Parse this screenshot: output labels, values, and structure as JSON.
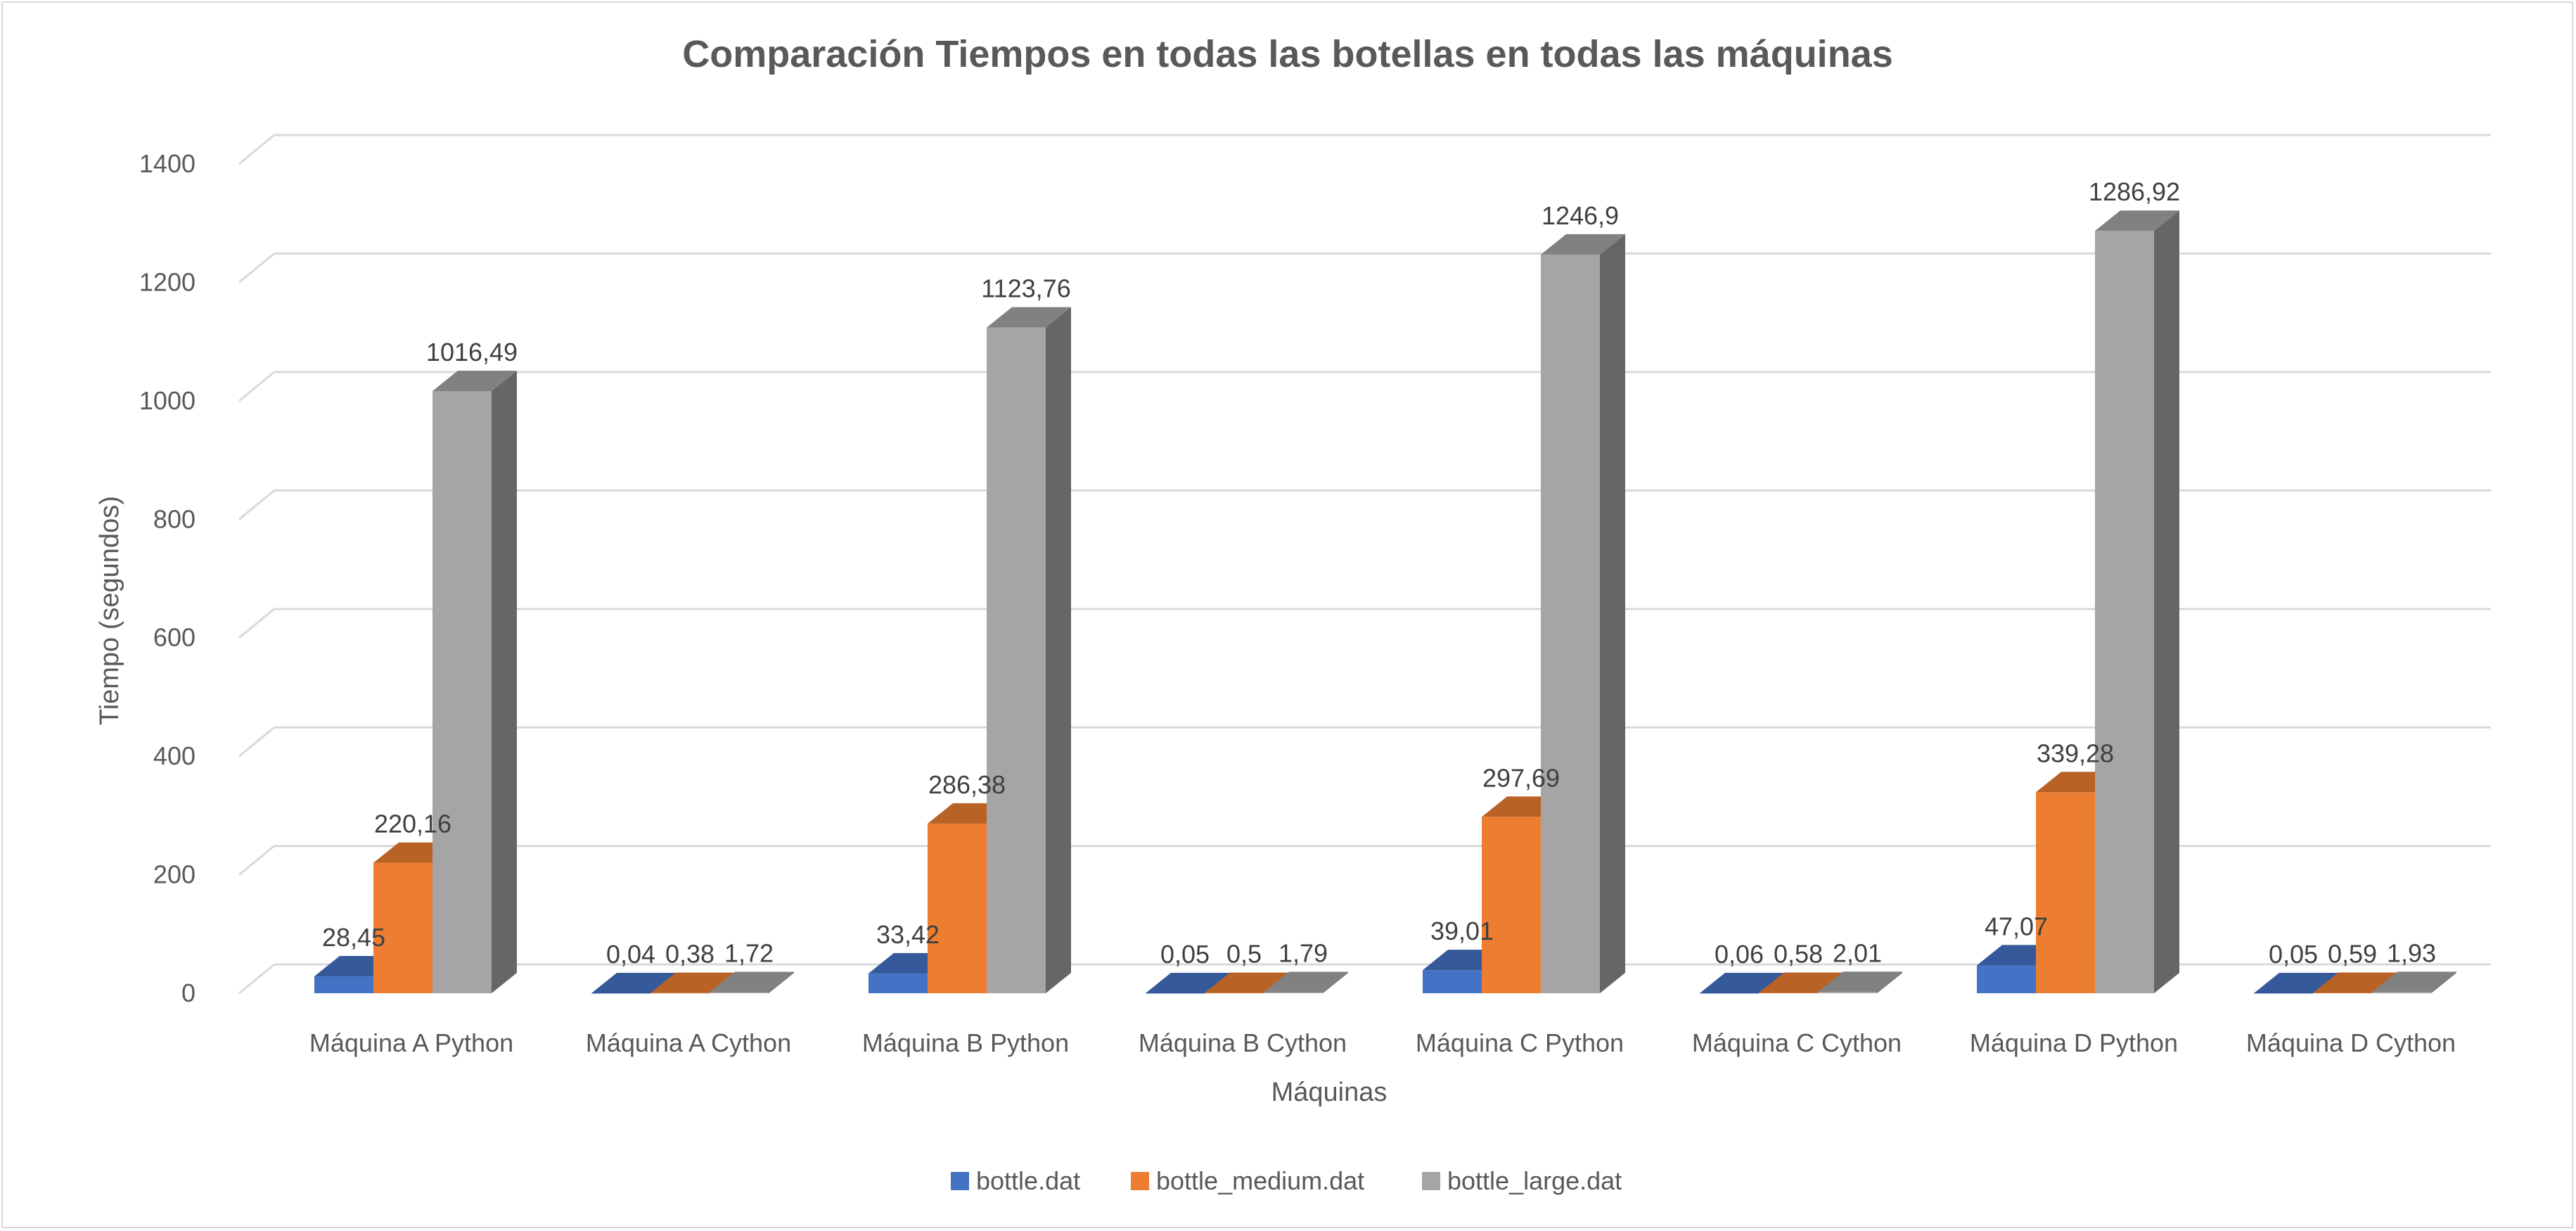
{
  "chart_data": {
    "type": "bar",
    "title": "Comparación Tiempos en todas las botellas en todas las máquinas",
    "xlabel": "Máquinas",
    "ylabel": "Tiempo (segundos)",
    "ylim": [
      0,
      1400
    ],
    "yticks": [
      0,
      200,
      400,
      600,
      800,
      1000,
      1200,
      1400
    ],
    "grid": true,
    "legend_position": "bottom",
    "categories": [
      "Máquina A Python",
      "Máquina A Cython",
      "Máquina B Python",
      "Máquina B Cython",
      "Máquina C Python",
      "Máquina C Cython",
      "Máquina D Python",
      "Máquina D Cython"
    ],
    "series": [
      {
        "name": "bottle.dat",
        "color": "#4472C4",
        "values": [
          28.45,
          0.04,
          33.42,
          0.05,
          39.01,
          0.06,
          47.07,
          0.05
        ],
        "labels": [
          "28,45",
          "0,04",
          "33,42",
          "0,05",
          "39,01",
          "0,06",
          "47,07",
          "0,05"
        ]
      },
      {
        "name": "bottle_medium.dat",
        "color": "#ED7D31",
        "values": [
          220.16,
          0.38,
          286.38,
          0.5,
          297.69,
          0.58,
          339.28,
          0.59
        ],
        "labels": [
          "220,16",
          "0,38",
          "286,38",
          "0,5",
          "297,69",
          "0,58",
          "339,28",
          "0,59"
        ]
      },
      {
        "name": "bottle_large.dat",
        "color": "#A5A5A5",
        "values": [
          1016.49,
          1.72,
          1123.76,
          1.79,
          1246.9,
          2.01,
          1286.92,
          1.93
        ],
        "labels": [
          "1016,49",
          "1,72",
          "1123,76",
          "1,79",
          "1246,9",
          "2,01",
          "1286,92",
          "1,93"
        ]
      }
    ]
  }
}
